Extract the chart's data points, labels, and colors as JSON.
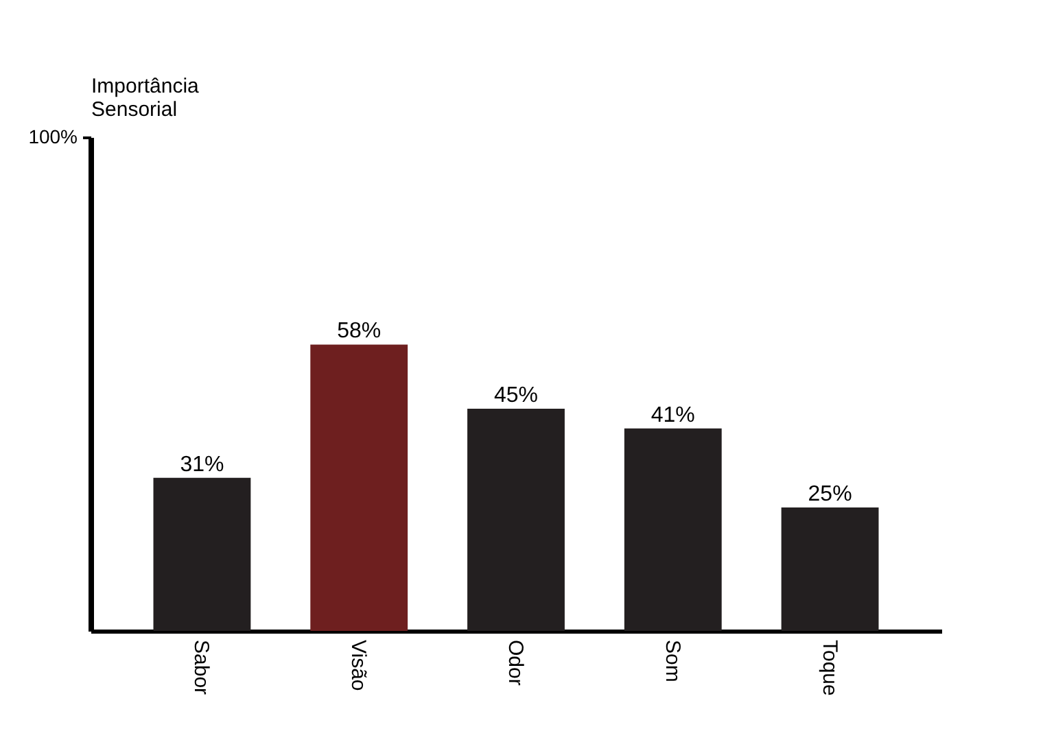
{
  "chart_data": {
    "type": "bar",
    "ylabel": "Importância Sensorial",
    "categories": [
      "Sabor",
      "Visão",
      "Odor",
      "Som",
      "Toque"
    ],
    "values": [
      31,
      58,
      45,
      41,
      25
    ],
    "colors": [
      "#231f20",
      "#6e1f1f",
      "#231f20",
      "#231f20",
      "#231f20"
    ],
    "value_labels": [
      "31%",
      "58%",
      "45%",
      "41%",
      "25%"
    ],
    "ylim": [
      0,
      100
    ],
    "yticks": [
      {
        "value": 100,
        "label": "100%"
      }
    ],
    "grid": false
  }
}
